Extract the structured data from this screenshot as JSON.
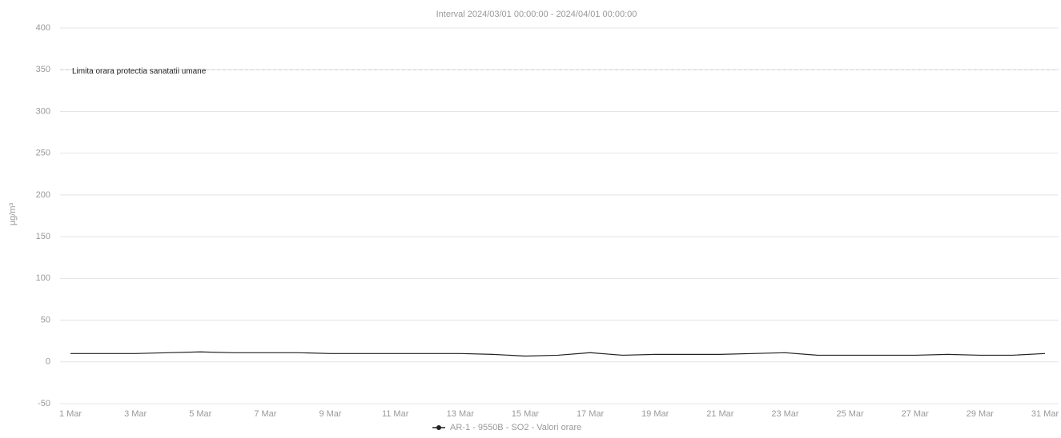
{
  "chart_data": {
    "type": "line",
    "title": "Interval 2024/03/01 00:00:00 - 2024/04/01 00:00:00",
    "y_label": "µg/m³",
    "annotation": "Limita orara protectia sanatatii umane",
    "limit": 350,
    "categories": [
      "1 Mar",
      null,
      "3 Mar",
      null,
      "5 Mar",
      null,
      "7 Mar",
      null,
      "9 Mar",
      null,
      "11 Mar",
      null,
      "13 Mar",
      null,
      "15 Mar",
      null,
      "17 Mar",
      null,
      "19 Mar",
      null,
      "21 Mar",
      null,
      "23 Mar",
      null,
      "25 Mar",
      null,
      "27 Mar",
      null,
      "29 Mar",
      null,
      "31 Mar"
    ],
    "series": [
      {
        "name": "AR-1 - 9550B - SO2 - Valori orare",
        "color": "#222222",
        "values": [
          10,
          10,
          10,
          11,
          12,
          11,
          11,
          11,
          10,
          10,
          10,
          10,
          10,
          9,
          7,
          8,
          11,
          8,
          9,
          9,
          9,
          10,
          11,
          8,
          8,
          8,
          8,
          9,
          8,
          8,
          10
        ]
      }
    ],
    "ylim": [
      -50,
      400
    ],
    "yticks": [
      -50,
      0,
      50,
      100,
      150,
      200,
      250,
      300,
      350,
      400
    ],
    "grid": true
  }
}
